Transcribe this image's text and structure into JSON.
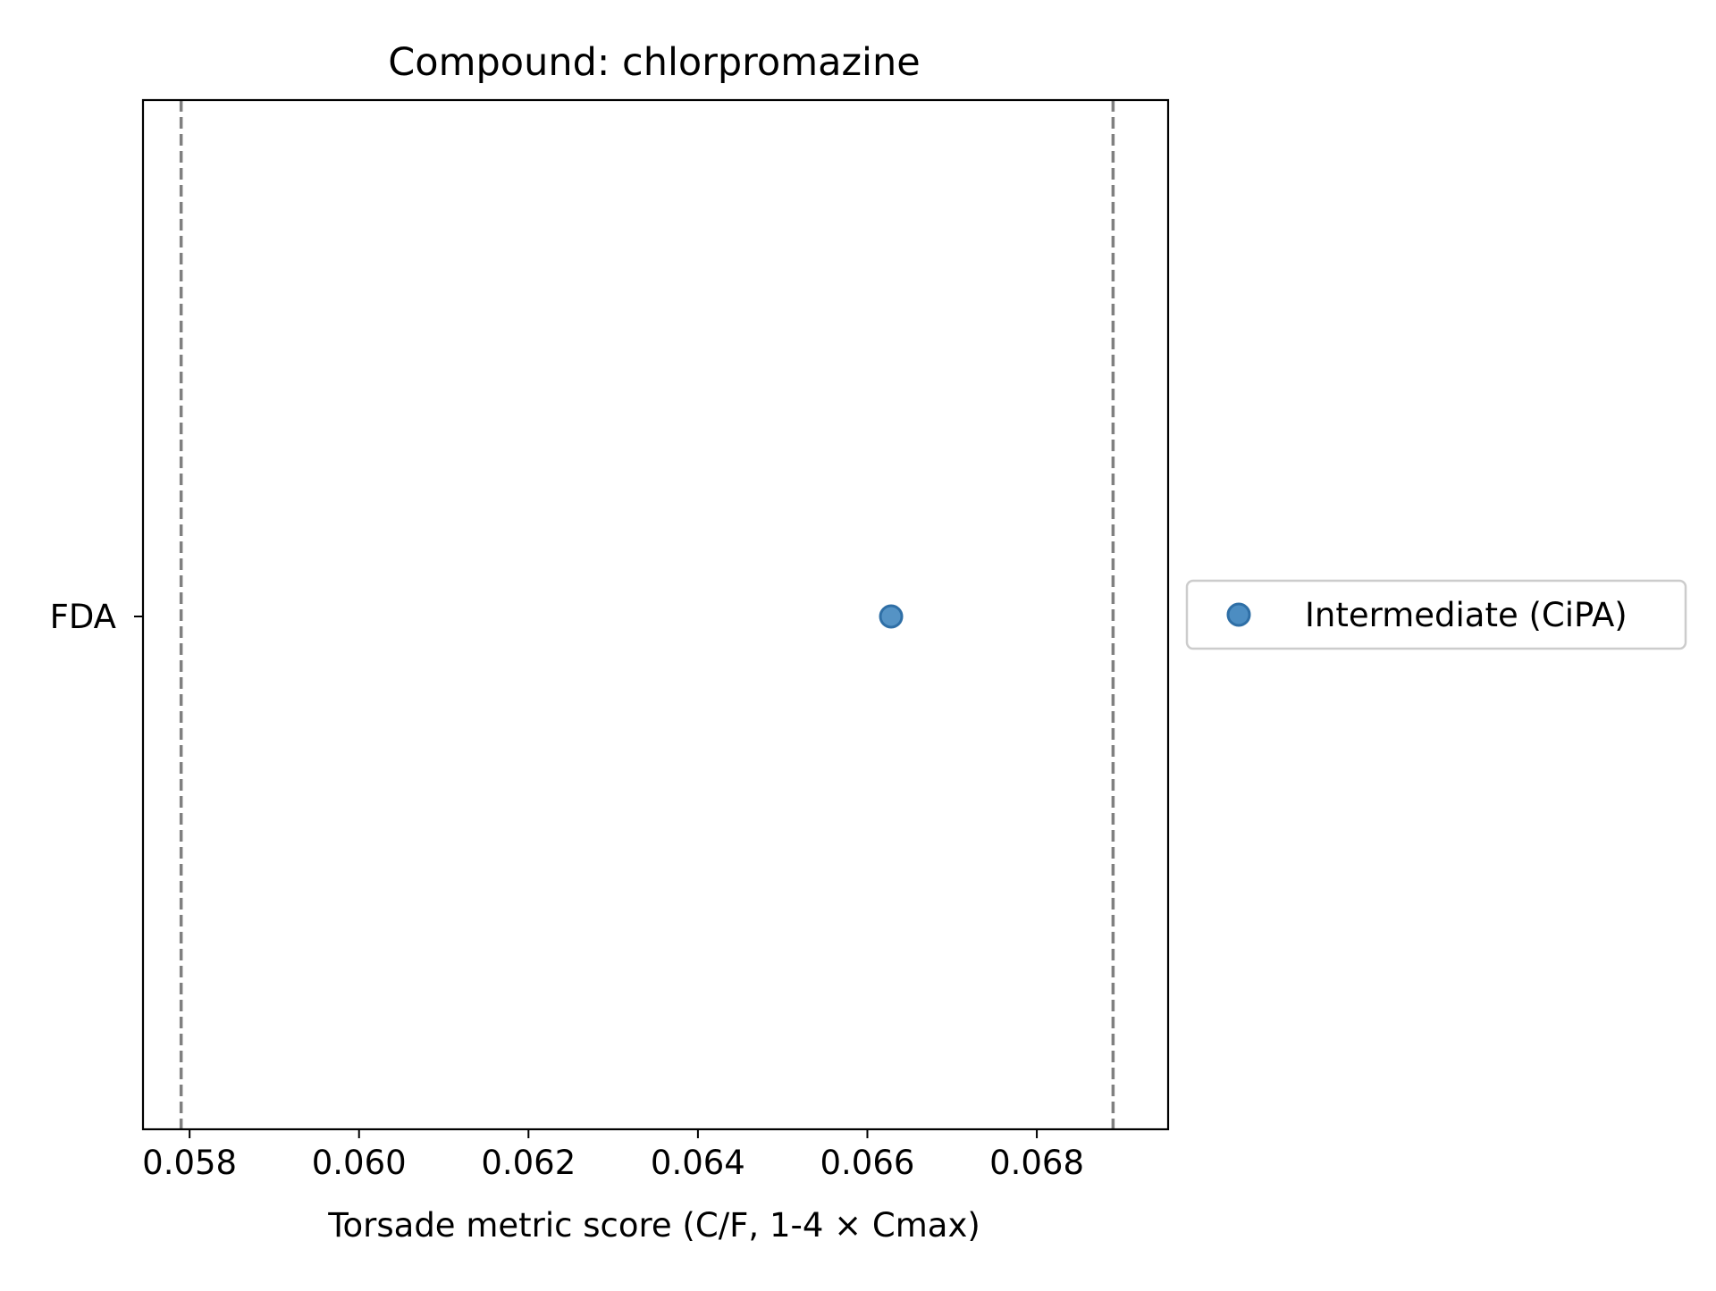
{
  "chart_data": {
    "type": "scatter",
    "title": "Compound: chlorpromazine",
    "xlabel": "Torsade metric score (C/F, 1-4 × Cmax)",
    "ylabel": "",
    "xlim": [
      0.05745,
      0.06955
    ],
    "x_ticks": [
      "0.058",
      "0.060",
      "0.062",
      "0.064",
      "0.066",
      "0.068"
    ],
    "x_tick_values": [
      0.058,
      0.06,
      0.062,
      0.064,
      0.066,
      0.068
    ],
    "categories": [
      "FDA"
    ],
    "series": [
      {
        "name": "Intermediate (CiPA)",
        "color": "#4C8DC2",
        "points": [
          {
            "x": 0.06628,
            "y": "FDA"
          }
        ]
      }
    ],
    "reference_lines": {
      "orientation": "vertical",
      "style": "dashed",
      "color": "#808080",
      "x": [
        0.0579,
        0.0689
      ]
    },
    "grid": false,
    "legend": {
      "placement": "outside-right"
    }
  }
}
